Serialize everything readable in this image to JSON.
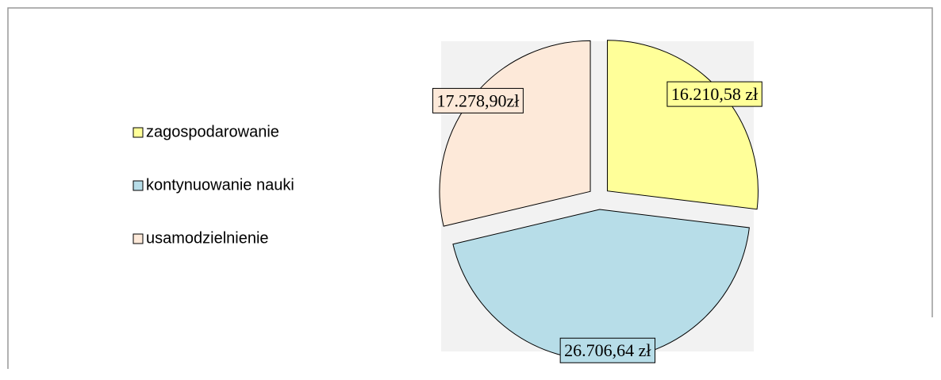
{
  "chart_data": {
    "type": "pie",
    "categories": [
      "zagospodarowanie",
      "kontynuowanie nauki",
      "usamodzielnienie"
    ],
    "values": [
      16210.58,
      26706.64,
      17278.9
    ],
    "value_labels": [
      "16.210,58 zł",
      "26.706,64 zł",
      "17.278,90zł"
    ],
    "colors": [
      "#ffff99",
      "#b7dde8",
      "#fde9d9"
    ],
    "legend": "left"
  }
}
